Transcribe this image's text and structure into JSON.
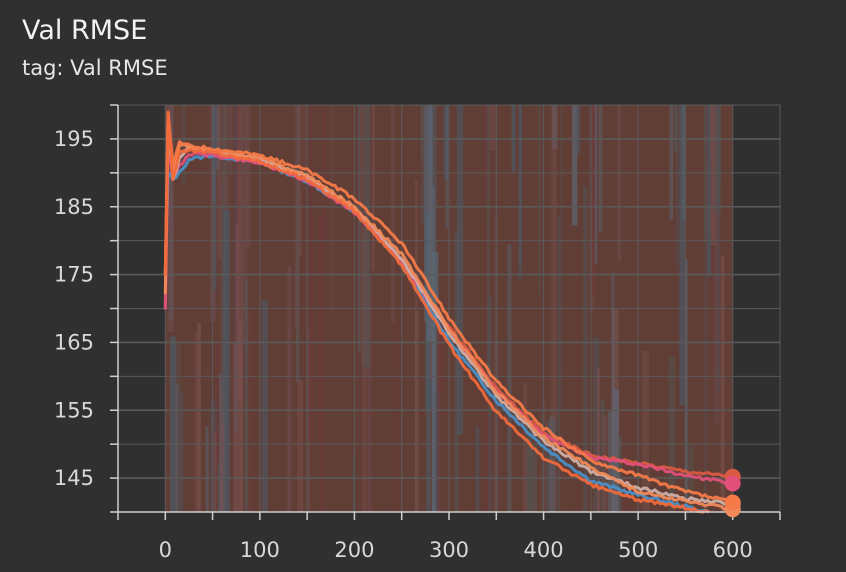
{
  "card": {
    "title": "Val RMSE",
    "subtitle": "tag: Val RMSE"
  },
  "colors": {
    "background": "#303030",
    "grid": "#5a5a5a",
    "axis": "#cfcfcf",
    "band": "#8a4a3a"
  },
  "chart_data": {
    "type": "line",
    "title": "Val RMSE",
    "xlabel": "",
    "ylabel": "",
    "xlim": [
      -50,
      650
    ],
    "ylim": [
      140,
      200
    ],
    "xticks": [
      0,
      100,
      200,
      300,
      400,
      500,
      600
    ],
    "yticks": [
      145,
      155,
      165,
      175,
      185,
      195
    ],
    "grid": true,
    "legend": "none",
    "series": [
      {
        "color": "#4a90c8",
        "x": [
          0,
          3,
          8,
          15,
          25,
          50,
          100,
          150,
          200,
          250,
          300,
          350,
          400,
          450,
          500,
          550,
          575
        ],
        "y": [
          175,
          190,
          189,
          190,
          192,
          192.6,
          191.5,
          188.8,
          184.2,
          176.8,
          165.2,
          156.4,
          149.6,
          144.6,
          142.5,
          140.8,
          140
        ]
      },
      {
        "color": "#d85a40",
        "x": [
          0,
          3,
          8,
          15,
          25,
          50,
          100,
          150,
          200,
          250,
          300,
          350,
          400,
          450,
          500,
          550,
          600
        ],
        "y": [
          170,
          199,
          190,
          193,
          193.4,
          193,
          191.7,
          189.2,
          184.4,
          177.2,
          167.4,
          158.2,
          151.6,
          148.4,
          147.2,
          146,
          145.2
        ]
      },
      {
        "color": "#e0507a",
        "x": [
          0,
          3,
          8,
          15,
          25,
          50,
          100,
          150,
          200,
          250,
          300,
          350,
          400,
          450,
          500,
          550,
          600
        ],
        "y": [
          170,
          195,
          189,
          191,
          192.8,
          192.6,
          191.5,
          188.8,
          184.2,
          177,
          166.8,
          157.8,
          151.2,
          148,
          147,
          145.4,
          144.2
        ]
      },
      {
        "color": "#cfaea6",
        "x": [
          0,
          3,
          8,
          15,
          25,
          50,
          100,
          150,
          200,
          250,
          300,
          350,
          400,
          450,
          500,
          550,
          600
        ],
        "y": [
          175,
          197,
          189,
          192,
          194,
          193.2,
          192,
          189.4,
          184.8,
          177.4,
          166.4,
          157.2,
          150.4,
          146,
          143.6,
          142,
          141.2
        ]
      },
      {
        "color": "#f08a5a",
        "x": [
          0,
          3,
          8,
          15,
          25,
          50,
          100,
          150,
          200,
          250,
          300,
          350,
          400,
          450,
          500,
          550,
          600
        ],
        "y": [
          172,
          198,
          190,
          194,
          193.8,
          193.4,
          192.2,
          189.6,
          185,
          178,
          167,
          157.8,
          151,
          146.6,
          143,
          141.6,
          140.4
        ]
      },
      {
        "color": "#f47a48",
        "x": [
          0,
          3,
          8,
          15,
          25,
          50,
          100,
          150,
          200,
          250,
          300,
          350,
          400,
          450,
          500,
          550,
          600
        ],
        "y": [
          175,
          199,
          191,
          194.5,
          194,
          193.6,
          192.6,
          190.4,
          186.2,
          179.6,
          168.6,
          159.2,
          152.4,
          147.6,
          145.4,
          143,
          141.4
        ]
      },
      {
        "color": "#f06a3c",
        "x": [
          0,
          3,
          8,
          15,
          25,
          50,
          100,
          150,
          200,
          250,
          300,
          350,
          400,
          450,
          500,
          550,
          575
        ],
        "y": [
          175,
          199,
          189,
          193,
          193.2,
          193,
          191.6,
          189,
          184.4,
          176.4,
          164.6,
          154.8,
          148,
          144,
          141.8,
          140.6,
          140
        ]
      }
    ]
  }
}
